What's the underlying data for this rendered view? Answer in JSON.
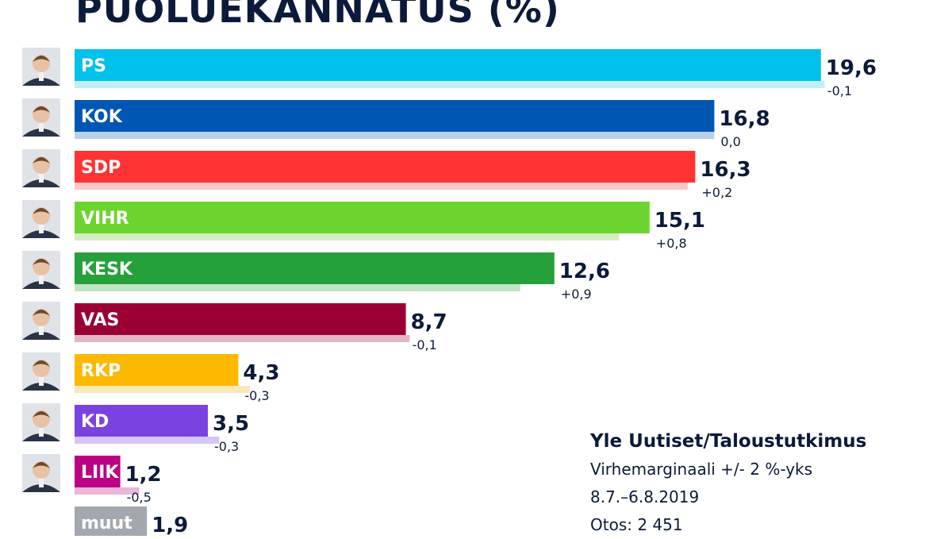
{
  "chart_data": {
    "type": "bar",
    "orientation": "horizontal",
    "title": "PUOLUEKANNATUS (%)",
    "categories": [
      "PS",
      "KOK",
      "SDP",
      "VIHR",
      "KESK",
      "VAS",
      "RKP",
      "KD",
      "LIIK",
      "muut"
    ],
    "series": [
      {
        "values": [
          19.6,
          16.8,
          16.3,
          15.1,
          12.6,
          8.7,
          4.3,
          3.5,
          1.2,
          1.9
        ]
      },
      {
        "values": [
          19.7,
          16.8,
          16.1,
          14.3,
          11.7,
          8.8,
          4.6,
          3.8,
          1.7,
          null
        ]
      }
    ],
    "value_labels": [
      "19,6",
      "16,8",
      "16,3",
      "15,1",
      "12,6",
      "8,7",
      "4,3",
      "3,5",
      "1,2",
      "1,9"
    ],
    "change_labels": [
      "-0,1",
      "0,0",
      "+0,2",
      "+0,8",
      "+0,9",
      "-0,1",
      "-0,3",
      "-0,3",
      "-0,5",
      ""
    ],
    "colors": [
      "#00c0ec",
      "#0057b3",
      "#ff3333",
      "#6cd42f",
      "#25a03a",
      "#9b0035",
      "#fcb900",
      "#7a42e0",
      "#ba0084",
      "#a3a8b0"
    ],
    "previous_colors": [
      "#c2eef8",
      "#b9d0ea",
      "#fcc7c7",
      "#d2f0bf",
      "#c0e4c4",
      "#e2b6c6",
      "#fbe8b4",
      "#d5c5f4",
      "#e9b7d7",
      ""
    ],
    "xlim": [
      0,
      20
    ],
    "grid": false,
    "legend": "none"
  },
  "source": {
    "title": "Yle Uutiset/Taloustutkimus",
    "margin": "Virhemarginaali +/- 2 %-yks",
    "period": "8.7.–6.8.2019",
    "sample": "Otos: 2 451"
  },
  "avatars": [
    "avatar-ps",
    "avatar-kok",
    "avatar-sdp",
    "avatar-vihr",
    "avatar-kesk",
    "avatar-vas",
    "avatar-rkp",
    "avatar-kd",
    "avatar-liik"
  ]
}
